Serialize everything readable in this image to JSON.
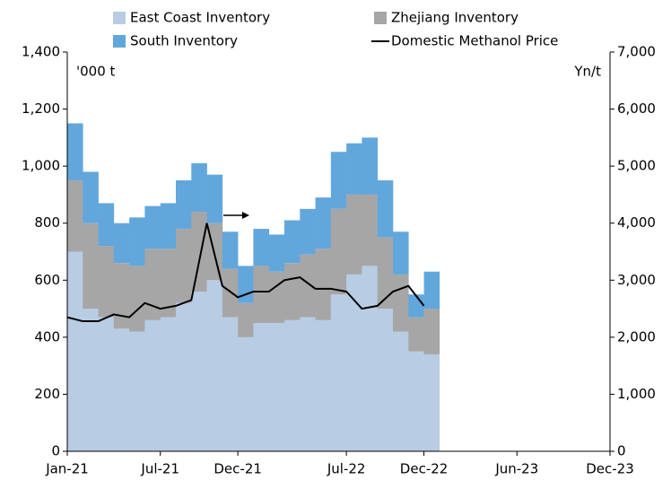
{
  "chart_data": {
    "type": "bar",
    "stacked": true,
    "y_unit_label": "'000 t",
    "y2_unit_label": "Yn/t",
    "x": [
      0,
      1,
      2,
      3,
      4,
      5,
      6,
      7,
      8,
      9,
      10,
      11,
      12,
      13,
      14,
      15,
      16,
      17,
      18,
      19,
      20,
      21,
      22,
      23
    ],
    "xlim": [
      0,
      35
    ],
    "xticks": [
      {
        "value": 0,
        "label": "Jan-21"
      },
      {
        "value": 6,
        "label": "Jul-21"
      },
      {
        "value": 11,
        "label": "Dec-21"
      },
      {
        "value": 18,
        "label": "Jul-22"
      },
      {
        "value": 23,
        "label": "Dec-22"
      },
      {
        "value": 29,
        "label": "Jun-23"
      },
      {
        "value": 35,
        "label": "Dec-23"
      }
    ],
    "ylim": [
      0,
      1400
    ],
    "yticks": [
      0,
      200,
      400,
      600,
      800,
      {
        "value": 1000,
        "label": "1,000"
      },
      {
        "value": 1200,
        "label": "1,200"
      },
      {
        "value": 1400,
        "label": "1,400"
      }
    ],
    "y2lim": [
      0,
      7000
    ],
    "y2ticks": [
      0,
      {
        "value": 1000,
        "label": "1,000"
      },
      {
        "value": 2000,
        "label": "2,000"
      },
      {
        "value": 3000,
        "label": "3,000"
      },
      {
        "value": 4000,
        "label": "4,000"
      },
      {
        "value": 5000,
        "label": "5,000"
      },
      {
        "value": 6000,
        "label": "6,000"
      },
      {
        "value": 7000,
        "label": "7,000"
      }
    ],
    "series": [
      {
        "name": "East Coast Inventory",
        "color": "#b8cce4",
        "values": [
          700,
          500,
          470,
          430,
          420,
          460,
          470,
          520,
          560,
          600,
          470,
          400,
          450,
          450,
          460,
          470,
          460,
          550,
          620,
          650,
          500,
          420,
          350,
          340
        ]
      },
      {
        "name": "Zhejiang Inventory",
        "color": "#a6a6a6",
        "values": [
          250,
          300,
          250,
          230,
          230,
          250,
          240,
          260,
          280,
          200,
          170,
          120,
          200,
          180,
          200,
          220,
          250,
          300,
          280,
          250,
          250,
          200,
          120,
          160
        ]
      },
      {
        "name": "South Inventory",
        "color": "#62a7dc",
        "values": [
          200,
          180,
          150,
          140,
          170,
          150,
          160,
          170,
          170,
          170,
          130,
          130,
          130,
          130,
          150,
          160,
          180,
          200,
          180,
          200,
          200,
          150,
          80,
          130
        ]
      },
      {
        "name": "Domestic Methanol Price",
        "color": "#000000",
        "type": "line",
        "axis": "y2",
        "values": [
          2350,
          2280,
          2280,
          2400,
          2350,
          2600,
          2500,
          2550,
          2650,
          4000,
          2900,
          2700,
          2800,
          2800,
          3000,
          3050,
          2850,
          2850,
          2800,
          2500,
          2550,
          2800,
          2900,
          2550
        ]
      }
    ]
  }
}
